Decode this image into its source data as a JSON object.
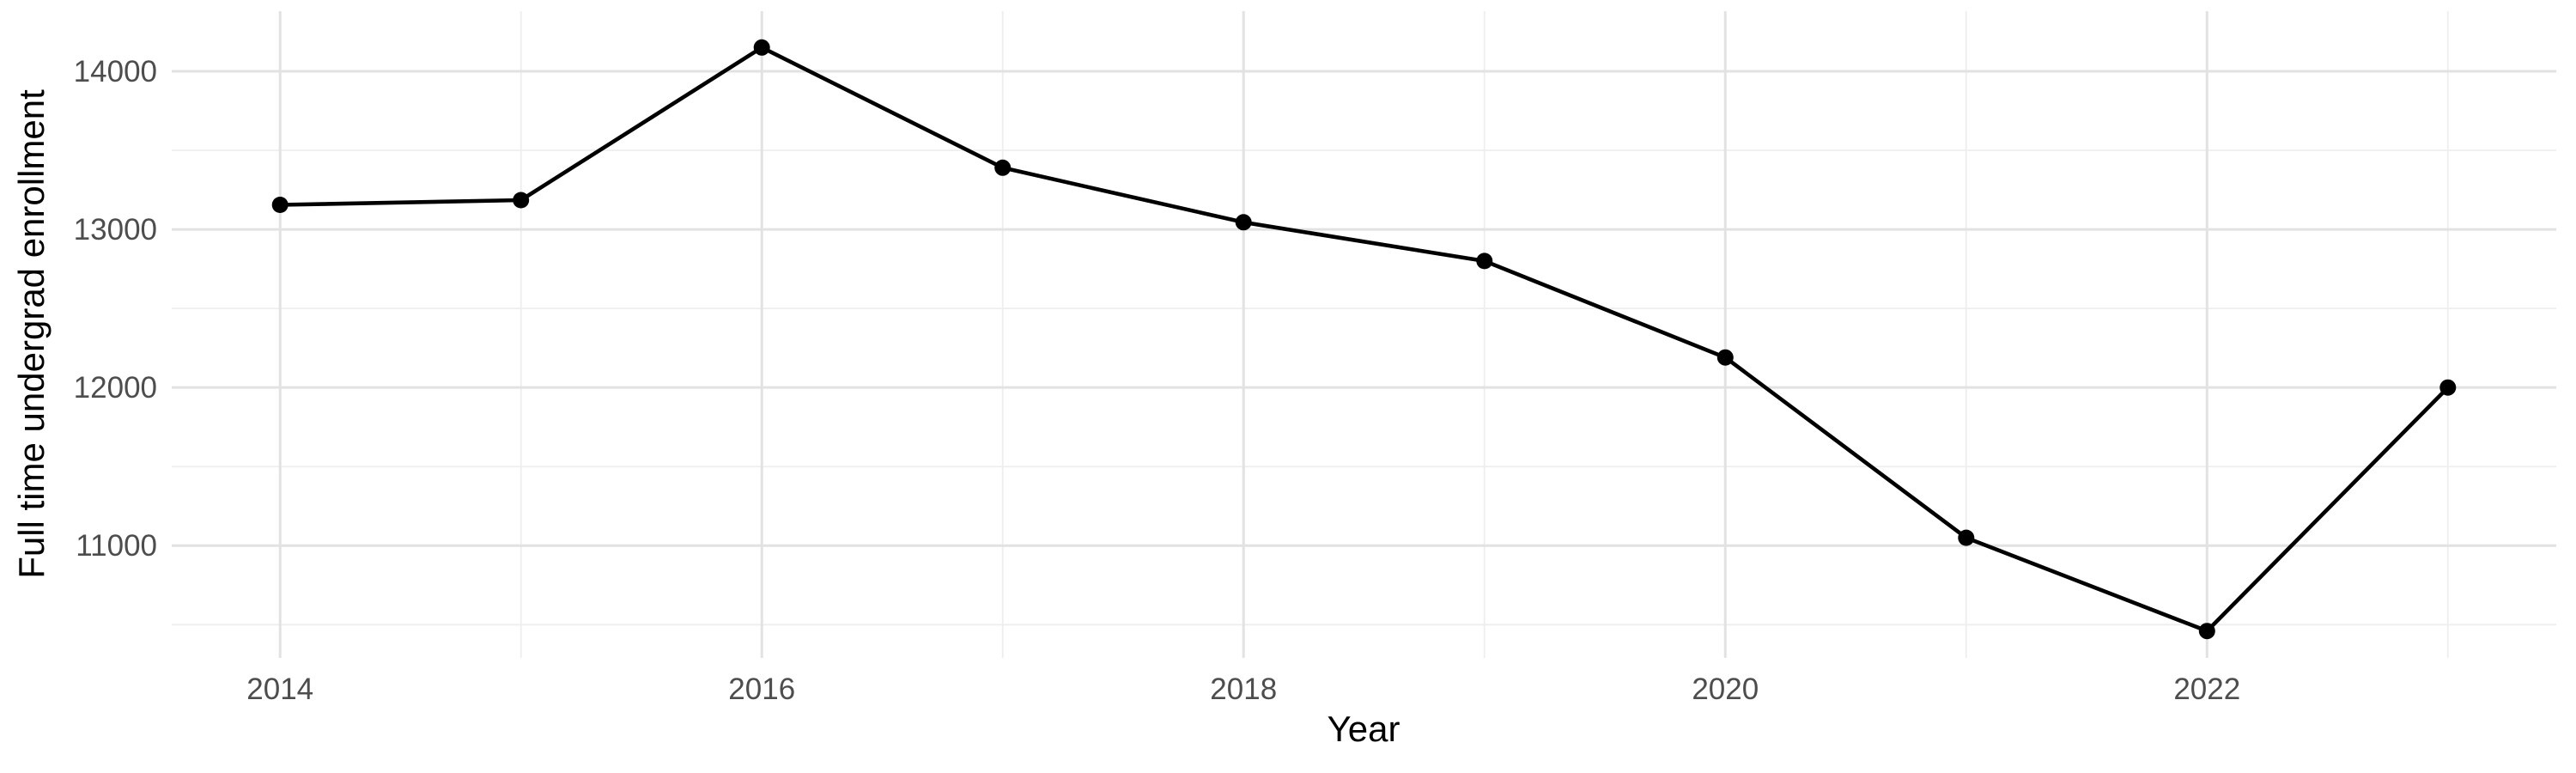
{
  "chart_data": {
    "type": "line",
    "title": "",
    "xlabel": "Year",
    "ylabel": "Full time undergrad enrollment",
    "series": [
      {
        "name": "Full time undergrad enrollment",
        "x": [
          2014,
          2015,
          2016,
          2017,
          2018,
          2019,
          2020,
          2021,
          2022,
          2023
        ],
        "values": [
          13155,
          13185,
          14150,
          13390,
          13045,
          12800,
          12190,
          11050,
          10460,
          12000
        ]
      }
    ],
    "xlim": [
      2013.55,
      2023.45
    ],
    "ylim": [
      10290,
      14380
    ],
    "x_major_ticks": [
      2014,
      2016,
      2018,
      2020,
      2022
    ],
    "x_minor_gridlines": [
      2015,
      2017,
      2019,
      2021,
      2023
    ],
    "y_major_ticks": [
      11000,
      12000,
      13000,
      14000
    ],
    "y_minor_gridlines": [
      10500,
      11500,
      12500,
      13500
    ],
    "grid": "major+minor, no axis lines, no tick marks",
    "legend_position": "none",
    "colors": {
      "line": "#000000",
      "point": "#000000",
      "grid_major": "#e2e2e2",
      "grid_minor": "#eeeeee",
      "tick_label": "#4d4d4d",
      "axis_title": "#000000",
      "background": "#ffffff"
    }
  }
}
